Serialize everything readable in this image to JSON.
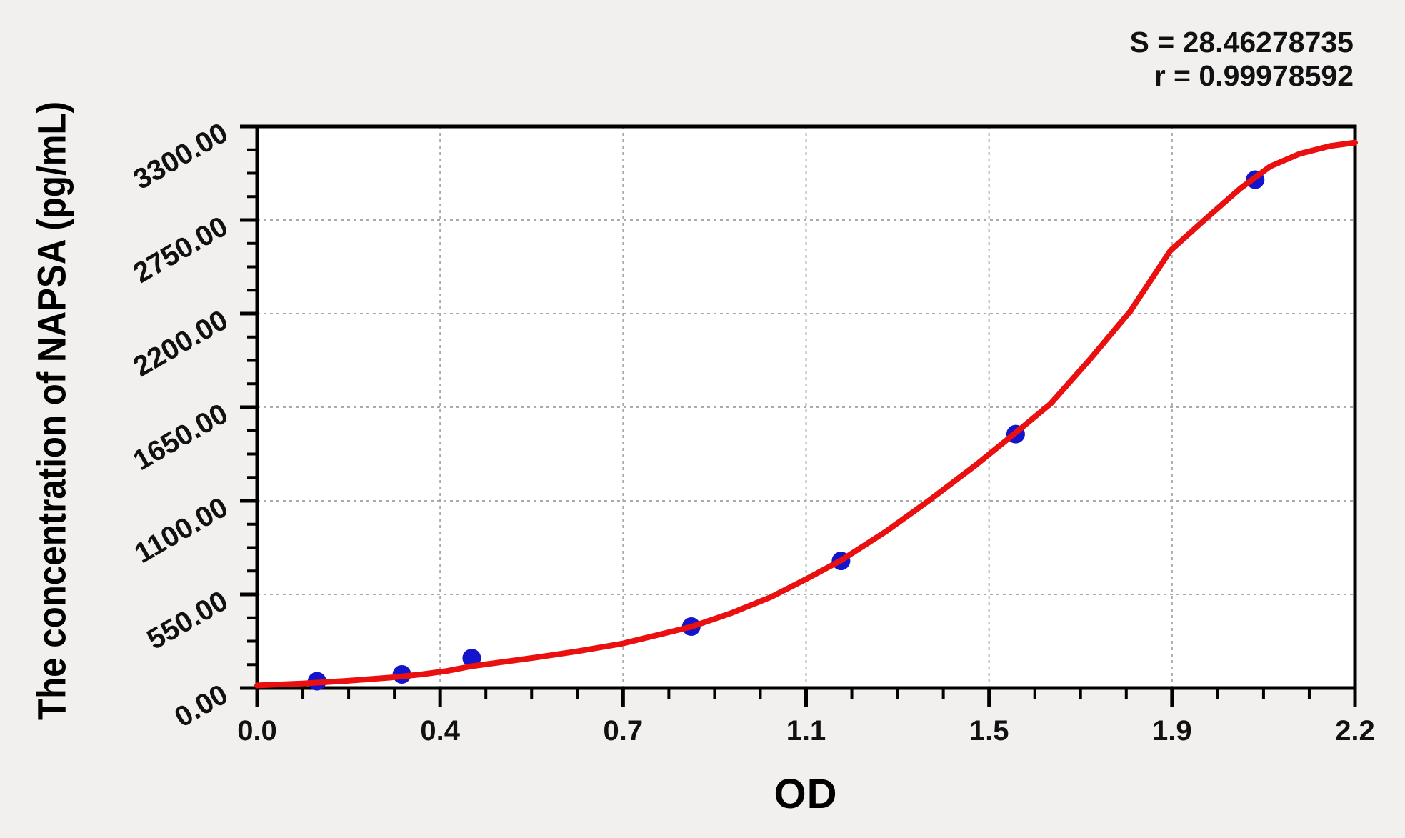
{
  "chart_data": {
    "type": "scatter",
    "title": "",
    "xlabel": "OD",
    "ylabel": "The concentration of NAPSA (pg/mL)",
    "xlim": [
      0,
      2.2
    ],
    "ylim": [
      0,
      3300
    ],
    "x_tick_labels": [
      "0.0",
      "0.4",
      "0.7",
      "1.1",
      "1.5",
      "1.9",
      "2.2"
    ],
    "y_tick_labels": [
      "0.00",
      "550.00",
      "1100.00",
      "1650.00",
      "2200.00",
      "2750.00",
      "3300.00"
    ],
    "x_minor_ticks_per_major": 3,
    "y_minor_ticks_per_major": 3,
    "grid": "dashed gray lines at interior major ticks, both axes",
    "legend": "none",
    "annotations": {
      "s_line": "S = 28.46278735",
      "r_line": "r = 0.99978592"
    },
    "points": {
      "od": [
        0.12,
        0.29,
        0.43,
        0.87,
        1.17,
        1.52,
        2.0
      ],
      "concentration": [
        40,
        80,
        176,
        361,
        747,
        1492,
        2987
      ]
    },
    "fit_curve": {
      "od": [
        0.0,
        0.09,
        0.18,
        0.27,
        0.33,
        0.38,
        0.43,
        0.49,
        0.56,
        0.64,
        0.73,
        0.8,
        0.87,
        0.95,
        1.03,
        1.1,
        1.17,
        1.26,
        1.35,
        1.44,
        1.52,
        1.59,
        1.67,
        1.75,
        1.83,
        1.9,
        1.97,
        2.03,
        2.09,
        2.15,
        2.2
      ],
      "concentration": [
        15,
        26,
        42,
        62,
        80,
        100,
        128,
        152,
        180,
        215,
        260,
        310,
        360,
        440,
        535,
        640,
        750,
        920,
        1110,
        1310,
        1500,
        1670,
        1935,
        2215,
        2570,
        2755,
        2935,
        3065,
        3140,
        3185,
        3205
      ]
    },
    "colors": {
      "background": "#f1f0ee",
      "plot_background": "#ffffff",
      "axis": "#000000",
      "grid": "#aaaaaa",
      "curve": "#ea100f",
      "points": "#1414cc",
      "text": "#111111"
    }
  }
}
